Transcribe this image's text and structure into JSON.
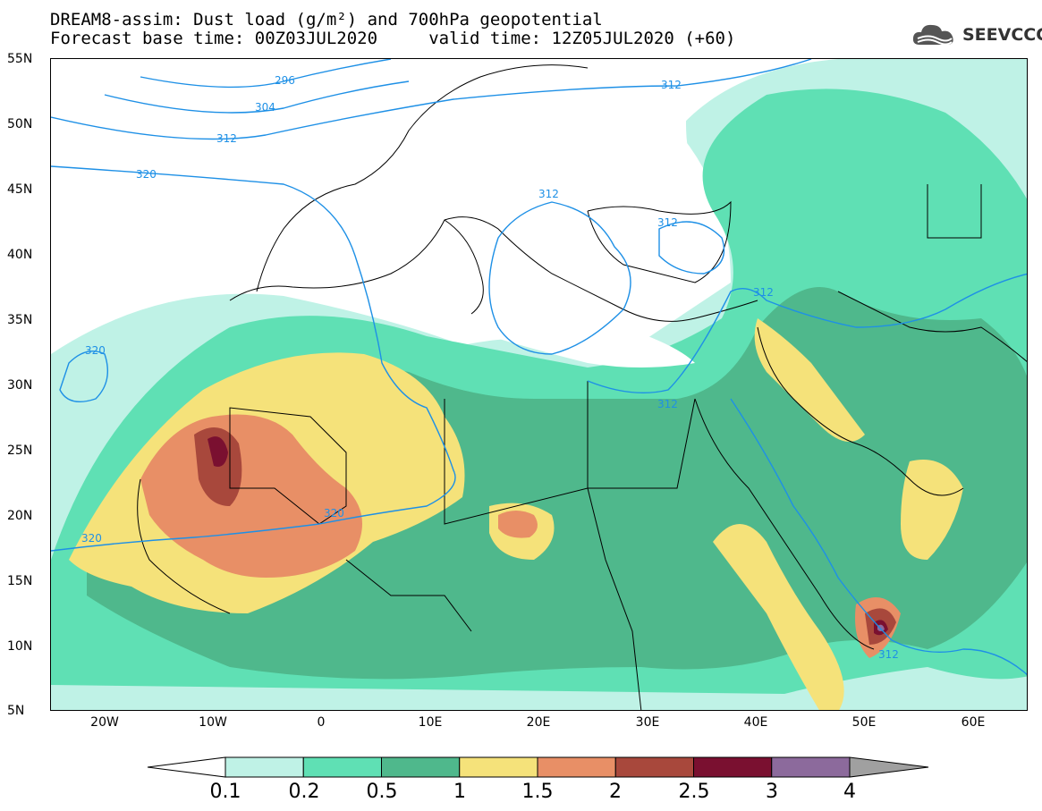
{
  "title": {
    "line1": "DREAM8-assim: Dust load (g/m²) and 700hPa geopotential",
    "line2": "Forecast base time: 00Z03JUL2020     valid time: 12Z05JUL2020 (+60)"
  },
  "logo": {
    "text": "SEEVCCC",
    "icon": "cloud-logo-icon"
  },
  "axes": {
    "lon_range": [
      -25,
      65
    ],
    "lat_range": [
      5,
      55
    ],
    "lat_ticks": [
      "55N",
      "50N",
      "45N",
      "40N",
      "35N",
      "30N",
      "25N",
      "20N",
      "15N",
      "10N",
      "5N"
    ],
    "lon_ticks": [
      "20W",
      "10W",
      "0",
      "10E",
      "20E",
      "30E",
      "40E",
      "50E",
      "60E"
    ]
  },
  "colorbar": {
    "levels": [
      "0.1",
      "0.2",
      "0.5",
      "1",
      "1.5",
      "2",
      "2.5",
      "3",
      "4"
    ],
    "colors": [
      "#bff2e6",
      "#5fe0b4",
      "#4fb88c",
      "#f5e27a",
      "#e88f66",
      "#a8483c",
      "#7a1030",
      "#8c6a9c"
    ],
    "min_arrow_color": "#ffffff",
    "max_arrow_color": "#a0a0a0"
  },
  "contours": {
    "color": "#1e90e6",
    "labels": [
      "296",
      "304",
      "312",
      "320",
      "320",
      "312",
      "312",
      "312",
      "312",
      "312",
      "320",
      "320",
      "312"
    ]
  }
}
